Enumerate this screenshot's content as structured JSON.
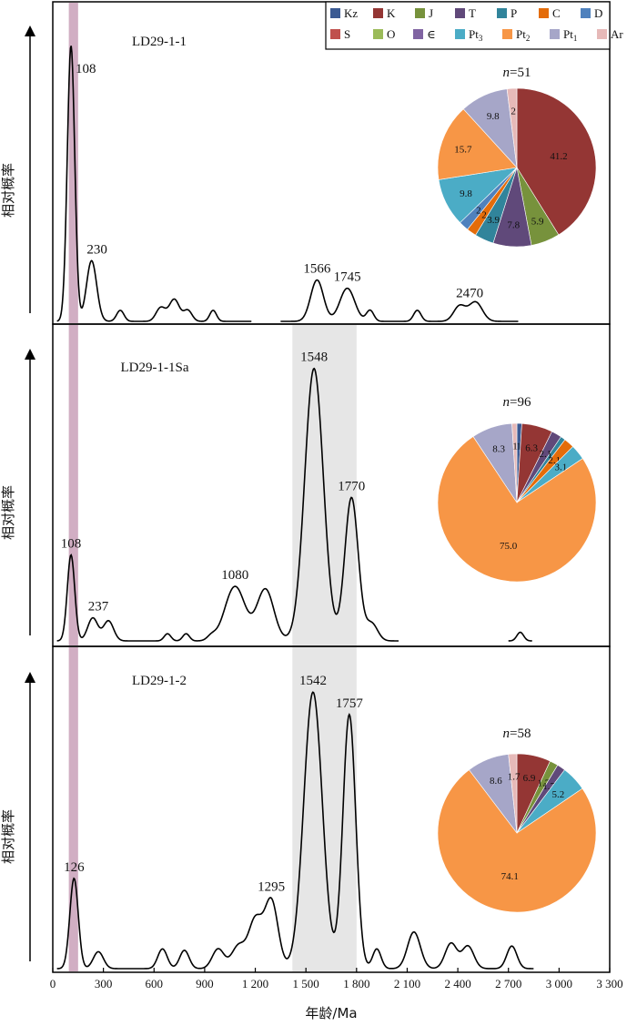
{
  "chart_data": {
    "type": "line",
    "title": "",
    "xlabel": "年龄/Ma",
    "ylabel": "相对概率",
    "xlim": [
      0,
      3300
    ],
    "xticks": [
      0,
      300,
      600,
      900,
      1200,
      1500,
      1800,
      2100,
      2400,
      2700,
      3000,
      3300
    ],
    "xtick_labels": [
      "0",
      "300",
      "600",
      "900",
      "1 200",
      "1 500",
      "1 800",
      "2 100",
      "2 400",
      "2 700",
      "3 000",
      "3 300"
    ],
    "highlight_bands": [
      {
        "name": "purple-band",
        "range": [
          95,
          150
        ],
        "color": "#c9a0b9",
        "panels": "all"
      },
      {
        "name": "grey-band",
        "range": [
          1420,
          1800
        ],
        "color": "#e6e6e6",
        "panels": [
          2,
          3
        ]
      }
    ],
    "legend": {
      "placement": "top-right",
      "entries": [
        {
          "label": "Kz",
          "sub": "",
          "color": "#3b5a93"
        },
        {
          "label": "K",
          "sub": "",
          "color": "#943634"
        },
        {
          "label": "J",
          "sub": "",
          "color": "#77923c"
        },
        {
          "label": "T",
          "sub": "",
          "color": "#60497a"
        },
        {
          "label": "P",
          "sub": "",
          "color": "#31849b"
        },
        {
          "label": "C",
          "sub": "",
          "color": "#e46c0a"
        },
        {
          "label": "D",
          "sub": "",
          "color": "#4f81bd"
        },
        {
          "label": "S",
          "sub": "",
          "color": "#c0504d"
        },
        {
          "label": "O",
          "sub": "",
          "color": "#9bbb59"
        },
        {
          "label": "∈",
          "sub": "",
          "color": "#8064a2"
        },
        {
          "label": "Pt",
          "sub": "3",
          "color": "#4bacc6"
        },
        {
          "label": "Pt",
          "sub": "2",
          "color": "#f79646"
        },
        {
          "label": "Pt",
          "sub": "1",
          "color": "#a6a6c8"
        },
        {
          "label": "Ar",
          "sub": "",
          "color": "#e6b9b8"
        }
      ]
    },
    "panels": [
      {
        "name": "LD29-1-1",
        "n_label": "n",
        "n_value": "=51",
        "curve": {
          "peaks": [
            {
              "x": 108,
              "h": 1.0,
              "w": 22
            },
            {
              "x": 230,
              "h": 0.22,
              "w": 30
            },
            {
              "x": 400,
              "h": 0.04,
              "w": 22
            },
            {
              "x": 640,
              "h": 0.05,
              "w": 28
            },
            {
              "x": 720,
              "h": 0.08,
              "w": 30
            },
            {
              "x": 800,
              "h": 0.04,
              "w": 25
            },
            {
              "x": 950,
              "h": 0.04,
              "w": 20
            },
            {
              "x": 1566,
              "h": 0.15,
              "w": 38
            },
            {
              "x": 1745,
              "h": 0.12,
              "w": 44
            },
            {
              "x": 1880,
              "h": 0.04,
              "w": 22
            },
            {
              "x": 2160,
              "h": 0.04,
              "w": 22
            },
            {
              "x": 2410,
              "h": 0.055,
              "w": 35
            },
            {
              "x": 2505,
              "h": 0.07,
              "w": 40
            }
          ],
          "segments": [
            [
              25,
              1180
            ],
            [
              1350,
              2760
            ]
          ]
        },
        "peak_labels": [
          {
            "x": 108,
            "text": "108"
          },
          {
            "x": 230,
            "text": "230"
          },
          {
            "x": 1566,
            "text": "1566"
          },
          {
            "x": 1745,
            "text": "1745"
          },
          {
            "x": 2470,
            "text": "2470"
          }
        ],
        "pie": [
          {
            "name": "K",
            "value": 41.2,
            "label": "41.2"
          },
          {
            "name": "J",
            "value": 5.9,
            "label": "5.9"
          },
          {
            "name": "T",
            "value": 7.8,
            "label": "7.8"
          },
          {
            "name": "P",
            "value": 3.9,
            "label": "3.9"
          },
          {
            "name": "C",
            "value": 2.0,
            "label": "2"
          },
          {
            "name": "D",
            "value": 2.0,
            "label": "2"
          },
          {
            "name": "Pt3",
            "value": 9.8,
            "label": "9.8"
          },
          {
            "name": "Pt2",
            "value": 15.7,
            "label": "15.7"
          },
          {
            "name": "Pt1",
            "value": 9.8,
            "label": "9.8"
          },
          {
            "name": "Ar",
            "value": 2.0,
            "label": "2"
          }
        ]
      },
      {
        "name": "LD29-1-1Sa",
        "n_label": "n",
        "n_value": "=96",
        "curve": {
          "peaks": [
            {
              "x": 108,
              "h": 0.3,
              "w": 22
            },
            {
              "x": 237,
              "h": 0.08,
              "w": 30
            },
            {
              "x": 330,
              "h": 0.07,
              "w": 30
            },
            {
              "x": 680,
              "h": 0.025,
              "w": 20
            },
            {
              "x": 790,
              "h": 0.025,
              "w": 20
            },
            {
              "x": 940,
              "h": 0.015,
              "w": 25
            },
            {
              "x": 1080,
              "h": 0.19,
              "w": 60
            },
            {
              "x": 1260,
              "h": 0.18,
              "w": 50
            },
            {
              "x": 1548,
              "h": 0.95,
              "w": 55
            },
            {
              "x": 1770,
              "h": 0.5,
              "w": 40
            },
            {
              "x": 1890,
              "h": 0.06,
              "w": 35
            },
            {
              "x": 2770,
              "h": 0.03,
              "w": 20
            }
          ],
          "segments": [
            [
              25,
              2050
            ],
            [
              2700,
              2840
            ]
          ]
        },
        "peak_labels": [
          {
            "x": 108,
            "text": "108"
          },
          {
            "x": 237,
            "text": "237"
          },
          {
            "x": 1080,
            "text": "1080"
          },
          {
            "x": 1548,
            "text": "1548"
          },
          {
            "x": 1770,
            "text": "1770"
          }
        ],
        "pie": [
          {
            "name": "Kz",
            "value": 1.0,
            "label": "1"
          },
          {
            "name": "K",
            "value": 6.3,
            "label": "6.3"
          },
          {
            "name": "T",
            "value": 2.1,
            "label": "2.1"
          },
          {
            "name": "P",
            "value": 1.0,
            "label": "1"
          },
          {
            "name": "C",
            "value": 2.1,
            "label": "2.1"
          },
          {
            "name": "Pt3",
            "value": 3.1,
            "label": "3.1"
          },
          {
            "name": "Pt2",
            "value": 75.0,
            "label": "75.0"
          },
          {
            "name": "Pt1",
            "value": 8.3,
            "label": "8.3"
          },
          {
            "name": "Ar",
            "value": 1.0,
            "label": "1"
          }
        ]
      },
      {
        "name": "LD29-1-2",
        "n_label": "n",
        "n_value": "=58",
        "curve": {
          "peaks": [
            {
              "x": 126,
              "h": 0.32,
              "w": 25
            },
            {
              "x": 270,
              "h": 0.06,
              "w": 30
            },
            {
              "x": 650,
              "h": 0.07,
              "w": 28
            },
            {
              "x": 780,
              "h": 0.065,
              "w": 28
            },
            {
              "x": 980,
              "h": 0.07,
              "w": 35
            },
            {
              "x": 1100,
              "h": 0.08,
              "w": 40
            },
            {
              "x": 1200,
              "h": 0.17,
              "w": 40
            },
            {
              "x": 1295,
              "h": 0.24,
              "w": 40
            },
            {
              "x": 1542,
              "h": 0.98,
              "w": 55
            },
            {
              "x": 1757,
              "h": 0.9,
              "w": 38
            },
            {
              "x": 1920,
              "h": 0.07,
              "w": 25
            },
            {
              "x": 2140,
              "h": 0.13,
              "w": 38
            },
            {
              "x": 2360,
              "h": 0.09,
              "w": 35
            },
            {
              "x": 2460,
              "h": 0.08,
              "w": 35
            },
            {
              "x": 2720,
              "h": 0.08,
              "w": 30
            }
          ],
          "segments": [
            [
              25,
              2850
            ]
          ]
        },
        "peak_labels": [
          {
            "x": 126,
            "text": "126"
          },
          {
            "x": 1295,
            "text": "1295"
          },
          {
            "x": 1542,
            "text": "1542"
          },
          {
            "x": 1757,
            "text": "1757"
          }
        ],
        "pie": [
          {
            "name": "K",
            "value": 6.9,
            "label": "6.9"
          },
          {
            "name": "J",
            "value": 1.7,
            "label": "1.7"
          },
          {
            "name": "T",
            "value": 1.7,
            "label": "1.7"
          },
          {
            "name": "Pt3",
            "value": 5.2,
            "label": "5.2"
          },
          {
            "name": "Pt2",
            "value": 74.1,
            "label": "74.1"
          },
          {
            "name": "Pt1",
            "value": 8.6,
            "label": "8.6"
          },
          {
            "name": "Ar",
            "value": 1.7,
            "label": "1.7"
          }
        ]
      }
    ]
  }
}
